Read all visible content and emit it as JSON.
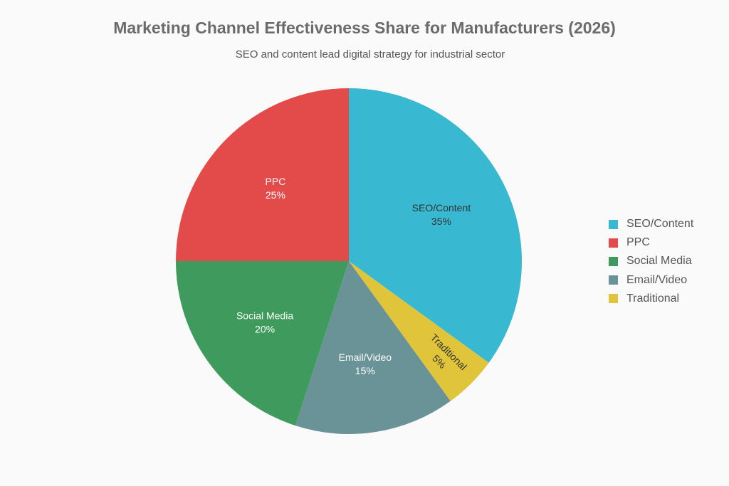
{
  "chart_data": {
    "type": "pie",
    "title": "Marketing Channel Effectiveness Share for Manufacturers (2026)",
    "subtitle": "SEO and content lead digital strategy for industrial sector",
    "legend_position": "right",
    "slices": [
      {
        "name": "SEO/Content",
        "value": 35,
        "label": "35%",
        "color": "#38b8d1",
        "label_color": "#333333"
      },
      {
        "name": "Traditional",
        "value": 5,
        "label": "5%",
        "color": "#e0c43a",
        "label_color": "#333333"
      },
      {
        "name": "Email/Video",
        "value": 15,
        "label": "15%",
        "color": "#6a9398",
        "label_color": "#ffffff"
      },
      {
        "name": "Social Media",
        "value": 20,
        "label": "20%",
        "color": "#3f9a5d",
        "label_color": "#ffffff"
      },
      {
        "name": "PPC",
        "value": 25,
        "label": "25%",
        "color": "#e24b4a",
        "label_color": "#ffffff"
      }
    ],
    "legend": [
      {
        "name": "SEO/Content",
        "color": "#38b8d1"
      },
      {
        "name": "PPC",
        "color": "#e24b4a"
      },
      {
        "name": "Social Media",
        "color": "#3f9a5d"
      },
      {
        "name": "Email/Video",
        "color": "#6a9398"
      },
      {
        "name": "Traditional",
        "color": "#e0c43a"
      }
    ]
  }
}
